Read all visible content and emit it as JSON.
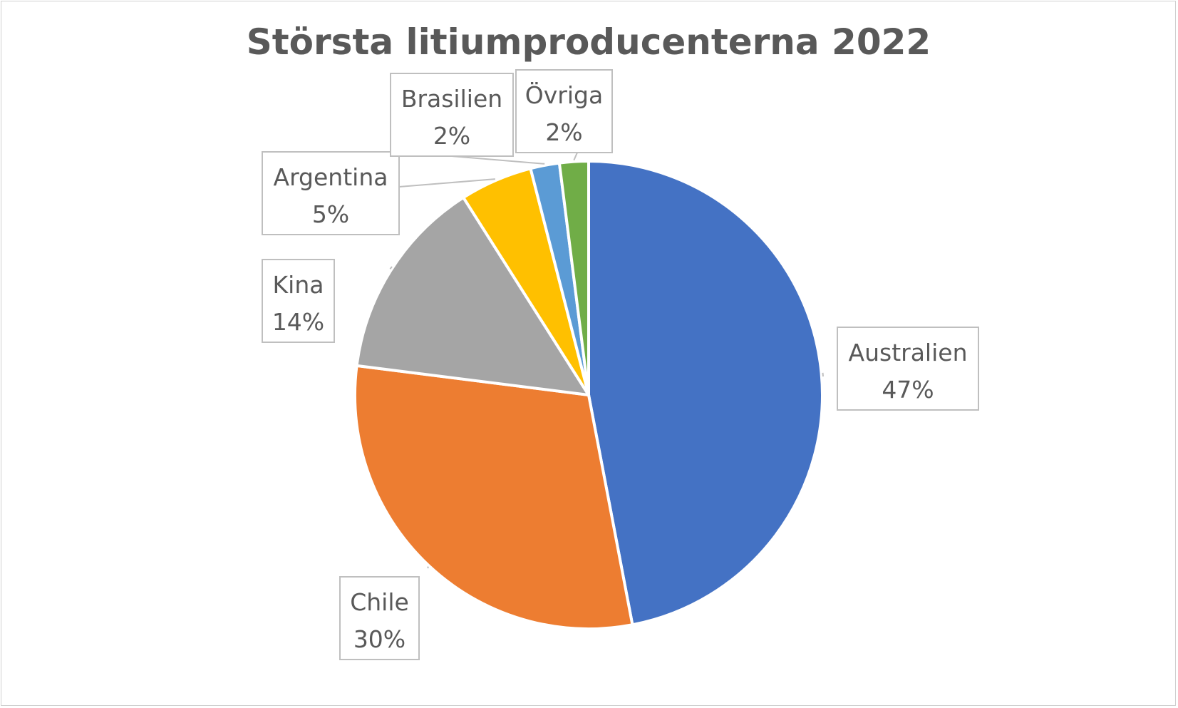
{
  "chart_data": {
    "type": "pie",
    "title": "Största litiumproducenterna 2022",
    "categories": [
      "Australien",
      "Chile",
      "Kina",
      "Argentina",
      "Brasilien",
      "Övriga"
    ],
    "values": [
      47,
      30,
      14,
      5,
      2,
      2
    ],
    "value_labels": [
      "47%",
      "30%",
      "14%",
      "5%",
      "2%",
      "2%"
    ],
    "colors": [
      "#4472C4",
      "#ED7D31",
      "#A5A5A5",
      "#FFC000",
      "#5B9BD5",
      "#70AD47"
    ],
    "start_angle_deg": 0,
    "direction": "clockwise",
    "legend": "none",
    "data_labels": "callouts"
  }
}
